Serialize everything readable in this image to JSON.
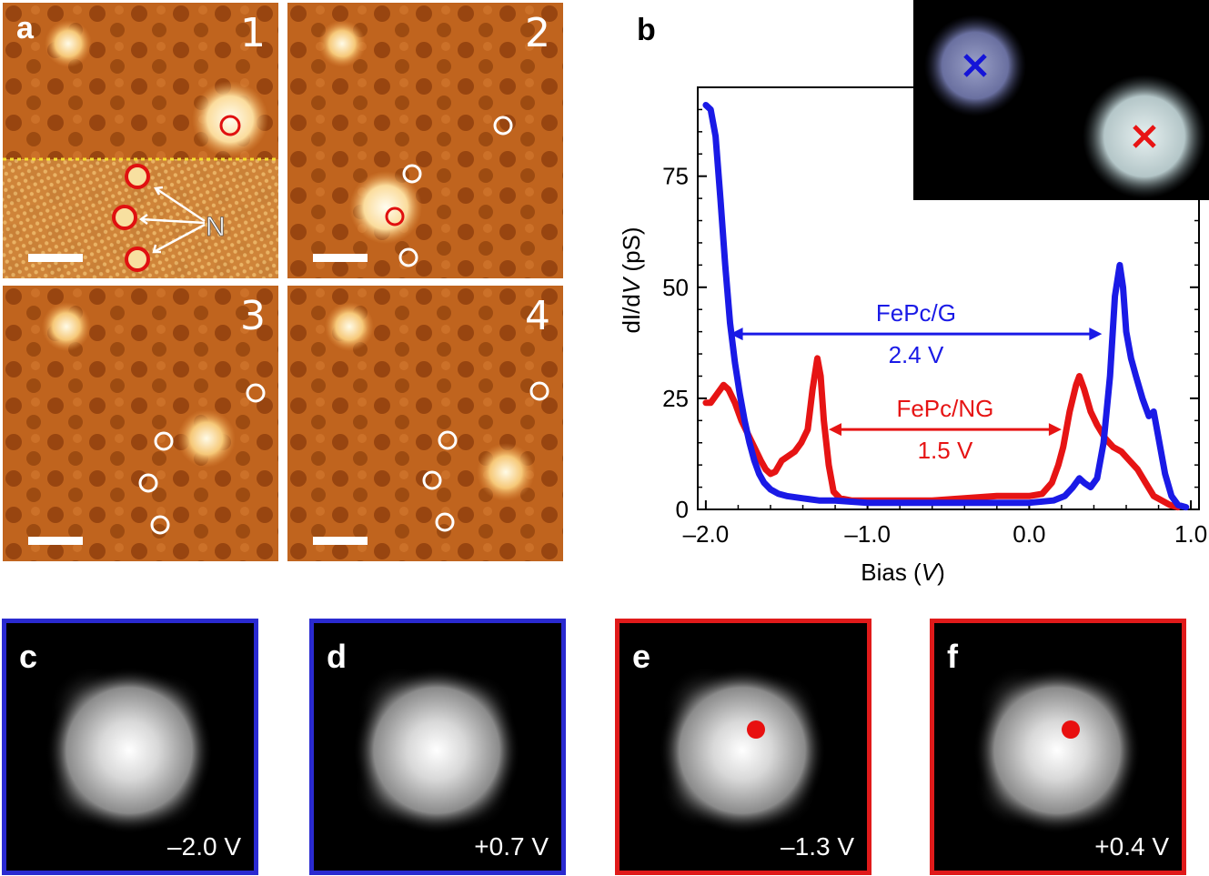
{
  "panel_a": {
    "label": "a",
    "frames": [
      "1",
      "2",
      "3",
      "4"
    ],
    "n_label": "N"
  },
  "panel_b": {
    "label": "b",
    "colors": {
      "fepc_g": "#1a1ae6",
      "fepc_ng": "#e61414"
    }
  },
  "chart_data": {
    "type": "line",
    "xlabel_prefix": "Bias (",
    "xlabel_var": "V",
    "xlabel_suffix": ")",
    "ylabel_prefix": "dI/d",
    "ylabel_var": "V",
    "ylabel_suffix": " (pS)",
    "xlim": [
      -2.05,
      1.05
    ],
    "ylim": [
      0,
      95
    ],
    "xticks": [
      -2.0,
      -1.0,
      0.0,
      1.0
    ],
    "xtick_labels": [
      "–2.0",
      "–1.0",
      "0.0",
      "1.0"
    ],
    "yticks": [
      0,
      25,
      50,
      75
    ],
    "ytick_labels": [
      "0",
      "25",
      "50",
      "75"
    ],
    "series": [
      {
        "name": "FePc/G",
        "color": "#1a1ae6",
        "points": [
          [
            -2.0,
            91
          ],
          [
            -1.97,
            90
          ],
          [
            -1.94,
            84
          ],
          [
            -1.91,
            70
          ],
          [
            -1.88,
            55
          ],
          [
            -1.85,
            42
          ],
          [
            -1.82,
            33
          ],
          [
            -1.79,
            26
          ],
          [
            -1.76,
            20
          ],
          [
            -1.73,
            15
          ],
          [
            -1.7,
            11
          ],
          [
            -1.67,
            8
          ],
          [
            -1.64,
            6
          ],
          [
            -1.6,
            4.5
          ],
          [
            -1.55,
            3.5
          ],
          [
            -1.5,
            3
          ],
          [
            -1.4,
            2.5
          ],
          [
            -1.3,
            2
          ],
          [
            -1.2,
            2
          ],
          [
            -1.0,
            1.5
          ],
          [
            -0.8,
            1.5
          ],
          [
            -0.6,
            1.5
          ],
          [
            -0.4,
            1.5
          ],
          [
            -0.2,
            1.5
          ],
          [
            0.0,
            1.5
          ],
          [
            0.15,
            2
          ],
          [
            0.22,
            3
          ],
          [
            0.27,
            5
          ],
          [
            0.31,
            7
          ],
          [
            0.34,
            6
          ],
          [
            0.38,
            5
          ],
          [
            0.42,
            7
          ],
          [
            0.46,
            15
          ],
          [
            0.5,
            30
          ],
          [
            0.53,
            48
          ],
          [
            0.56,
            55
          ],
          [
            0.58,
            50
          ],
          [
            0.6,
            40
          ],
          [
            0.63,
            34
          ],
          [
            0.66,
            30
          ],
          [
            0.7,
            25
          ],
          [
            0.74,
            21
          ],
          [
            0.77,
            22
          ],
          [
            0.8,
            16
          ],
          [
            0.84,
            8
          ],
          [
            0.88,
            3
          ],
          [
            0.92,
            1
          ],
          [
            0.97,
            0.5
          ]
        ]
      },
      {
        "name": "FePc/NG",
        "color": "#e61414",
        "points": [
          [
            -2.0,
            24
          ],
          [
            -1.97,
            24
          ],
          [
            -1.93,
            26
          ],
          [
            -1.89,
            28
          ],
          [
            -1.86,
            27
          ],
          [
            -1.82,
            24
          ],
          [
            -1.78,
            20
          ],
          [
            -1.74,
            17
          ],
          [
            -1.7,
            14
          ],
          [
            -1.66,
            11
          ],
          [
            -1.63,
            9
          ],
          [
            -1.6,
            8
          ],
          [
            -1.57,
            8.5
          ],
          [
            -1.53,
            11
          ],
          [
            -1.49,
            12
          ],
          [
            -1.45,
            13
          ],
          [
            -1.41,
            15
          ],
          [
            -1.37,
            18
          ],
          [
            -1.34,
            27
          ],
          [
            -1.31,
            34
          ],
          [
            -1.29,
            30
          ],
          [
            -1.27,
            20
          ],
          [
            -1.24,
            10
          ],
          [
            -1.21,
            4
          ],
          [
            -1.17,
            2.5
          ],
          [
            -1.1,
            2
          ],
          [
            -1.0,
            2
          ],
          [
            -0.8,
            2
          ],
          [
            -0.6,
            2
          ],
          [
            -0.4,
            2.5
          ],
          [
            -0.2,
            3
          ],
          [
            0.0,
            3
          ],
          [
            0.08,
            3.5
          ],
          [
            0.14,
            6
          ],
          [
            0.18,
            10
          ],
          [
            0.21,
            14
          ],
          [
            0.25,
            22
          ],
          [
            0.29,
            28
          ],
          [
            0.31,
            30
          ],
          [
            0.34,
            27
          ],
          [
            0.38,
            22
          ],
          [
            0.42,
            19
          ],
          [
            0.47,
            16
          ],
          [
            0.52,
            14
          ],
          [
            0.57,
            13
          ],
          [
            0.62,
            11
          ],
          [
            0.67,
            9
          ],
          [
            0.72,
            6
          ],
          [
            0.77,
            3
          ],
          [
            0.82,
            2
          ],
          [
            0.87,
            1
          ],
          [
            0.92,
            0.5
          ]
        ]
      }
    ],
    "annotations": [
      {
        "label_top": "FePc/G",
        "label_bottom": "2.4 V",
        "color": "#1a1ae6",
        "x_start": -1.85,
        "x_end": 0.45,
        "y": 39.5
      },
      {
        "label_top": "FePc/NG",
        "label_bottom": "1.5 V",
        "color": "#e61414",
        "x_start": -1.24,
        "x_end": 0.2,
        "y": 18
      }
    ]
  },
  "molecule_panels": [
    {
      "label": "c",
      "bias": "–2.0 V",
      "border": "#2a2ad0",
      "marker": false
    },
    {
      "label": "d",
      "bias": "+0.7 V",
      "border": "#2a2ad0",
      "marker": false
    },
    {
      "label": "e",
      "bias": "–1.3 V",
      "border": "#e01a1a",
      "marker": true
    },
    {
      "label": "f",
      "bias": "+0.4 V",
      "border": "#e01a1a",
      "marker": true
    }
  ]
}
